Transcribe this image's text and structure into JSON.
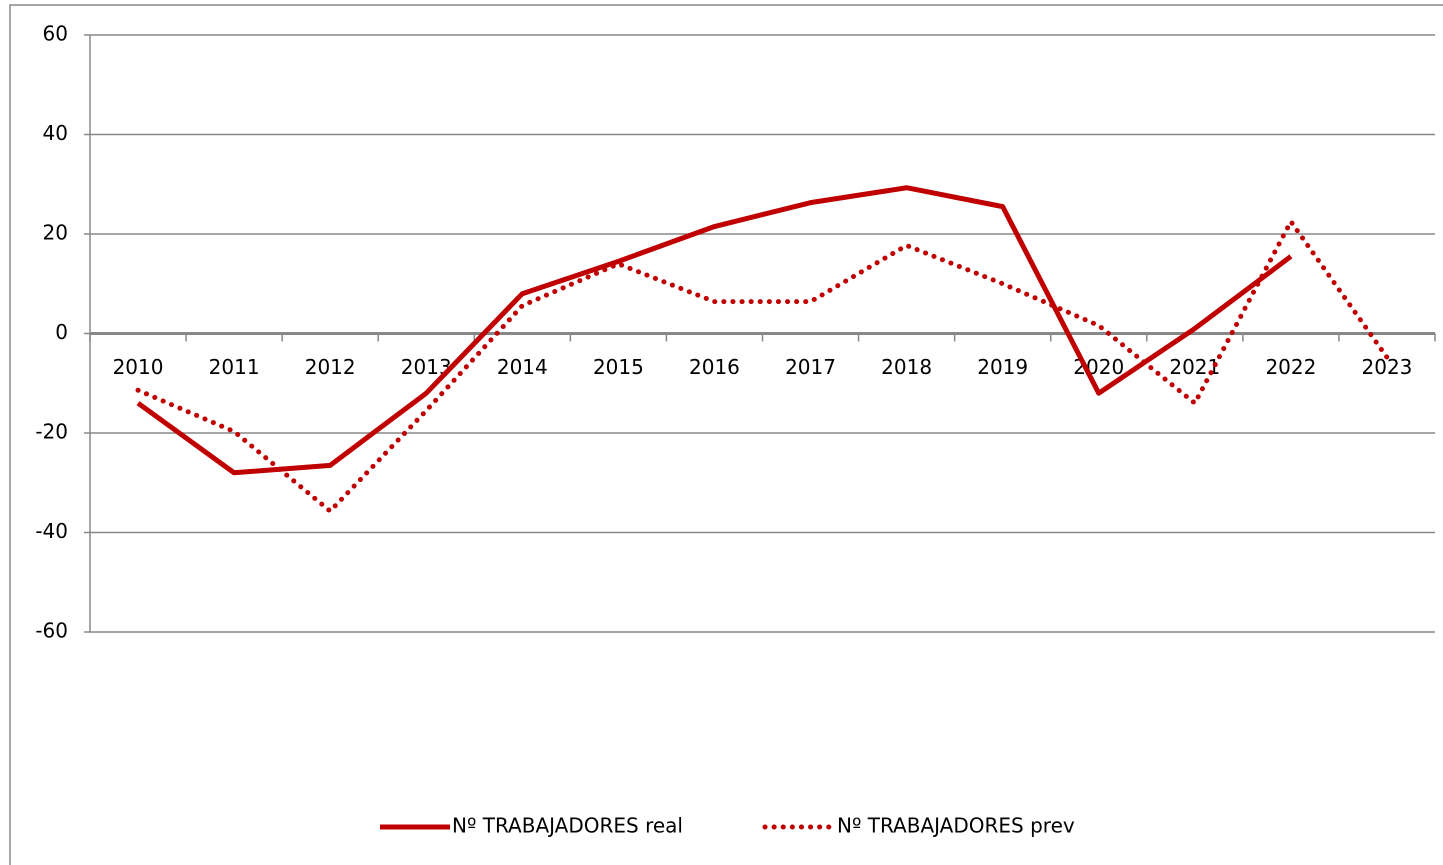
{
  "chart_data": {
    "type": "line",
    "categories": [
      "2010",
      "2011",
      "2012",
      "2013",
      "2014",
      "2015",
      "2016",
      "2017",
      "2018",
      "2019",
      "2020",
      "2021",
      "2022",
      "2023"
    ],
    "series": [
      {
        "name": "Nº TRABAJADORES real",
        "color": "#c00000",
        "style": "solid",
        "values": [
          -14,
          -28,
          -26.5,
          -12,
          8,
          14.5,
          21.5,
          26.3,
          29.3,
          25.5,
          -12,
          1,
          15.5,
          null
        ]
      },
      {
        "name": "Nº TRABAJADORES prev",
        "color": "#c00000",
        "style": "dotted",
        "values": [
          -11.4,
          -19.7,
          -35.7,
          -15.5,
          5.6,
          14,
          6.4,
          6.4,
          17.7,
          10,
          1.6,
          -14,
          22.5,
          -4.8
        ]
      }
    ],
    "ylim": [
      -60,
      60
    ],
    "yticks": [
      -60,
      -40,
      -20,
      0,
      20,
      40,
      60
    ],
    "grid": true,
    "legend": "bottom"
  }
}
